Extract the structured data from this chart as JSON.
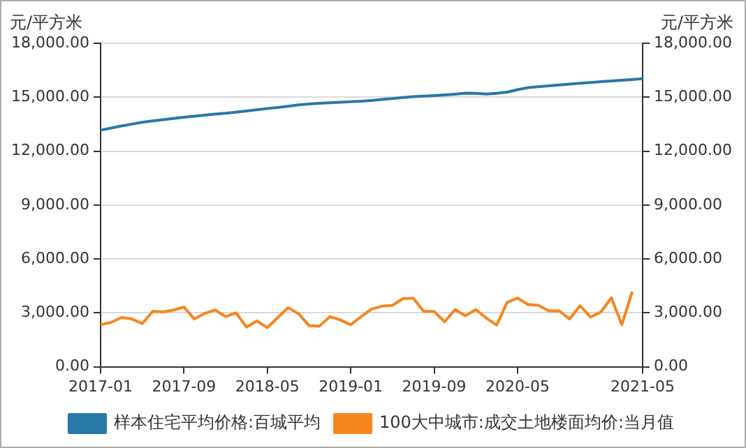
{
  "chart_data": {
    "type": "line",
    "ylabel": "元/平方米",
    "y2label": "元/平方米",
    "categories": [
      "2017-01",
      null,
      null,
      null,
      null,
      null,
      null,
      null,
      "2017-09",
      null,
      null,
      null,
      null,
      null,
      null,
      null,
      "2018-05",
      null,
      null,
      null,
      null,
      null,
      null,
      null,
      "2019-01",
      null,
      null,
      null,
      null,
      null,
      null,
      null,
      "2019-09",
      null,
      null,
      null,
      null,
      null,
      null,
      null,
      "2020-05",
      null,
      null,
      null,
      null,
      null,
      null,
      null,
      null,
      null,
      null,
      null,
      "2021-05"
    ],
    "series": [
      {
        "name": "样本住宅平均价格:百城平均",
        "color": "#2878a8",
        "values": [
          13160,
          13280,
          13400,
          13500,
          13600,
          13680,
          13750,
          13820,
          13880,
          13940,
          14000,
          14060,
          14110,
          14170,
          14230,
          14300,
          14370,
          14430,
          14500,
          14570,
          14620,
          14660,
          14690,
          14720,
          14750,
          14780,
          14820,
          14870,
          14920,
          14980,
          15030,
          15060,
          15090,
          15130,
          15170,
          15220,
          15210,
          15180,
          15210,
          15280,
          15420,
          15530,
          15580,
          15630,
          15680,
          15730,
          15780,
          15820,
          15860,
          15900,
          15940,
          15980,
          16030
        ]
      },
      {
        "name": "100大中城市:成交土地楼面均价:当月值",
        "color": "#f7851e",
        "axis": "y2",
        "values": [
          2340,
          2470,
          2740,
          2660,
          2400,
          3080,
          3050,
          3160,
          3320,
          2660,
          2970,
          3160,
          2790,
          3000,
          2210,
          2550,
          2180,
          2740,
          3290,
          2950,
          2290,
          2260,
          2790,
          2610,
          2340,
          2790,
          3210,
          3370,
          3420,
          3790,
          3820,
          3080,
          3080,
          2500,
          3180,
          2840,
          3180,
          2710,
          2320,
          3580,
          3820,
          3470,
          3420,
          3110,
          3110,
          2660,
          3400,
          2760,
          3050,
          3840,
          2340,
          4180,
          null
        ]
      }
    ],
    "ylim": [
      0,
      18000
    ],
    "yticks": [
      {
        "value": 0,
        "label": "0.00"
      },
      {
        "value": 3000,
        "label": "3,000.00"
      },
      {
        "value": 6000,
        "label": "6,000.00"
      },
      {
        "value": 9000,
        "label": "9,000.00"
      },
      {
        "value": 12000,
        "label": "12,000.00"
      },
      {
        "value": 15000,
        "label": "15,000.00"
      },
      {
        "value": 18000,
        "label": "18,000.00"
      }
    ],
    "y2lim": [
      0,
      18000
    ],
    "y2ticks": [
      {
        "value": 0,
        "label": "0.00"
      },
      {
        "value": 3000,
        "label": "3,000.00"
      },
      {
        "value": 6000,
        "label": "6,000.00"
      },
      {
        "value": 9000,
        "label": "9,000.00"
      },
      {
        "value": 12000,
        "label": "12,000.00"
      },
      {
        "value": 15000,
        "label": "15,000.00"
      },
      {
        "value": 18000,
        "label": "18,000.00"
      }
    ],
    "grid": "y",
    "legend": "bottom",
    "marker": "none",
    "line_style": "solid"
  }
}
